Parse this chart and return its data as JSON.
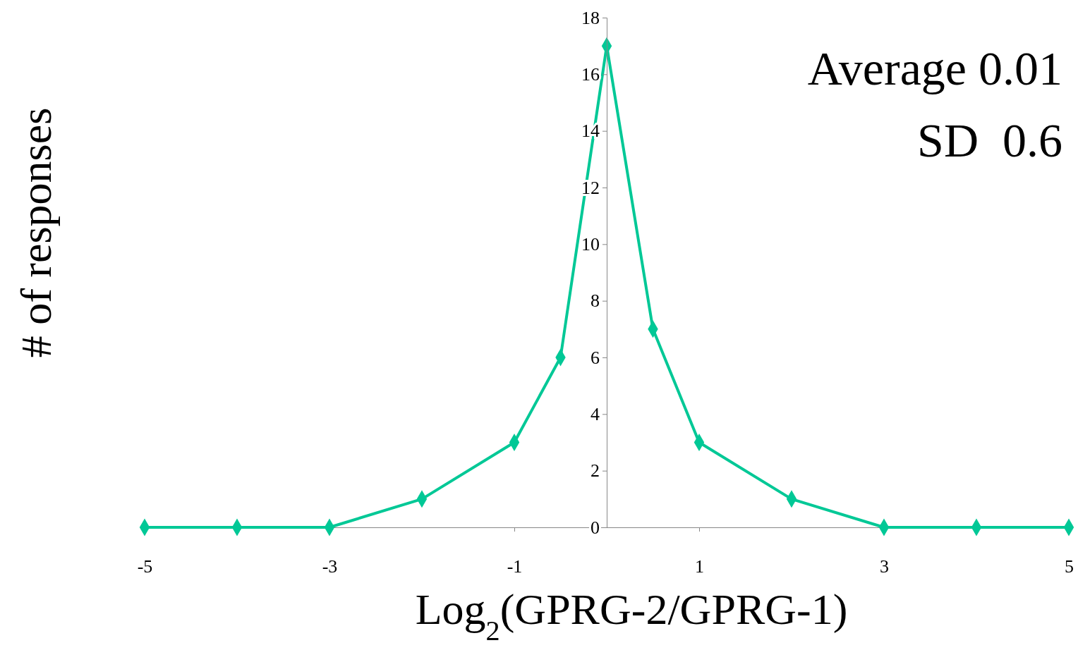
{
  "chart_data": {
    "type": "line",
    "xlabel": "Log$_{2}$(GPRG-2/GPRG-1)",
    "ylabel": "# of responses",
    "annotations": [
      "Average 0.01",
      "SD  0.6"
    ],
    "x": [
      -5,
      -4,
      -3,
      -2,
      -1,
      -0.5,
      0,
      0.5,
      1,
      2,
      3,
      4,
      5
    ],
    "series": [
      {
        "color": "#00c896",
        "values": [
          0,
          0,
          0,
          1,
          3,
          6,
          17,
          7,
          3,
          1,
          0,
          0,
          0
        ]
      }
    ],
    "xlim": [
      -5,
      5
    ],
    "xticks": [
      -5,
      -3,
      -1,
      1,
      3,
      5
    ],
    "ylim": [
      0,
      18
    ],
    "yticks": [
      0,
      2,
      4,
      6,
      8,
      10,
      12,
      14,
      16,
      18
    ],
    "grid": false,
    "marker": "diamond",
    "line_style": "solid"
  }
}
